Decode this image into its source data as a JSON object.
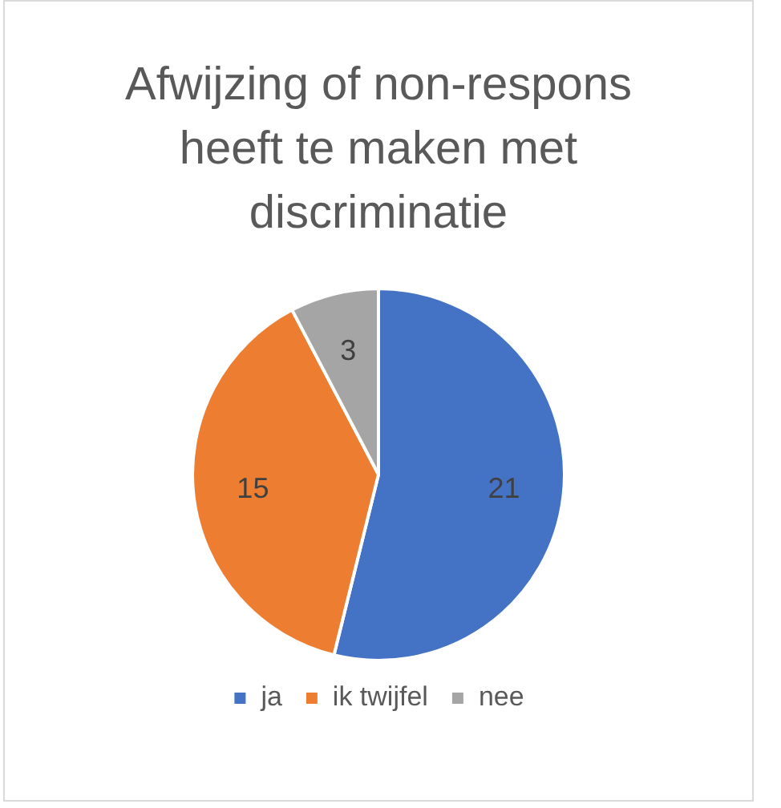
{
  "chart_data": {
    "type": "pie",
    "title": "Afwijzing of non-respons heeft te maken met discriminatie",
    "categories": [
      "ja",
      "ik twijfel",
      "nee"
    ],
    "values": [
      21,
      15,
      3
    ],
    "colors": [
      "#4472c4",
      "#ed7d31",
      "#a5a5a5"
    ],
    "data_labels": true,
    "legend": "bottom"
  }
}
